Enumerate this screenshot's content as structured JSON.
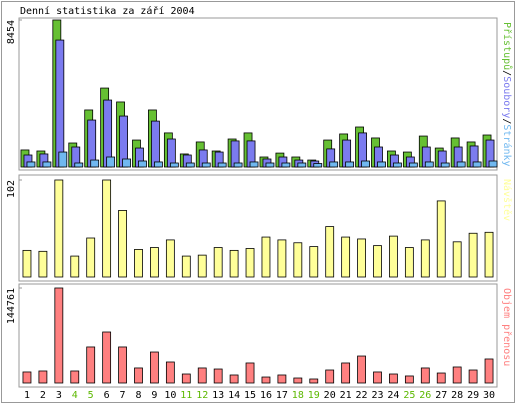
{
  "title": "Denní statistika za září 2004",
  "chart_data": [
    {
      "type": "bar",
      "legend_separator": "/",
      "series": [
        {
          "name": "Přístupů",
          "color": "#66c033",
          "values": [
            980,
            920,
            8454,
            1380,
            3280,
            4540,
            3740,
            1550,
            3280,
            1960,
            750,
            1440,
            920,
            1610,
            1960,
            575,
            800,
            575,
            400,
            1550,
            1900,
            2300,
            1670,
            920,
            860,
            1780,
            1090,
            1670,
            1440,
            1840
          ]
        },
        {
          "name": "Soubory",
          "color": "#7b7bef",
          "values": [
            690,
            750,
            7300,
            1150,
            2700,
            3850,
            2930,
            1090,
            2640,
            1610,
            690,
            980,
            860,
            1500,
            1500,
            460,
            575,
            400,
            345,
            1040,
            1550,
            1960,
            1150,
            690,
            575,
            1150,
            920,
            1150,
            1210,
            1550
          ]
        },
        {
          "name": "Stránky",
          "color": "#70b8f0",
          "values": [
            290,
            290,
            860,
            230,
            400,
            575,
            460,
            345,
            290,
            230,
            230,
            230,
            230,
            230,
            290,
            230,
            230,
            230,
            200,
            290,
            290,
            345,
            290,
            230,
            230,
            290,
            230,
            290,
            290,
            345
          ]
        }
      ],
      "ylim": [
        0,
        8454
      ],
      "yticks": [
        8454
      ]
    },
    {
      "type": "bar",
      "series": [
        {
          "name": "Návštěv",
          "color": "#ffff99",
          "values": [
            28,
            27,
            102,
            22,
            41,
            102,
            70,
            29,
            31,
            39,
            22,
            23,
            31,
            28,
            30,
            42,
            39,
            36,
            32,
            53,
            42,
            40,
            33,
            43,
            31,
            39,
            80,
            37,
            46,
            47
          ]
        }
      ],
      "ylim": [
        0,
        102
      ],
      "yticks": [
        102
      ]
    },
    {
      "type": "bar",
      "series": [
        {
          "name": "Objem přenosu",
          "color": "#ff8080",
          "values": [
            16800,
            18300,
            144761,
            18300,
            54900,
            77700,
            54900,
            22900,
            47200,
            32000,
            13700,
            22900,
            21300,
            12200,
            30500,
            9100,
            12200,
            7600,
            6100,
            19800,
            30500,
            41100,
            16800,
            13700,
            10700,
            22900,
            15200,
            24400,
            19800,
            36600
          ]
        }
      ],
      "ylim": [
        0,
        144761
      ],
      "yticks": [
        144761
      ],
      "categories": [
        "1",
        "2",
        "3",
        "4",
        "5",
        "6",
        "7",
        "8",
        "9",
        "10",
        "11",
        "12",
        "13",
        "14",
        "15",
        "16",
        "17",
        "18",
        "19",
        "20",
        "21",
        "22",
        "23",
        "24",
        "25",
        "26",
        "27",
        "28",
        "29",
        "30"
      ],
      "x_label_colors": [
        "#000000",
        "#000000",
        "#000000",
        "#5cb800",
        "#5cb800",
        "#000000",
        "#000000",
        "#000000",
        "#000000",
        "#000000",
        "#5cb800",
        "#5cb800",
        "#000000",
        "#000000",
        "#000000",
        "#000000",
        "#000000",
        "#5cb800",
        "#5cb800",
        "#000000",
        "#000000",
        "#000000",
        "#000000",
        "#000000",
        "#5cb800",
        "#5cb800",
        "#000000",
        "#000000",
        "#000000",
        "#000000"
      ]
    }
  ]
}
